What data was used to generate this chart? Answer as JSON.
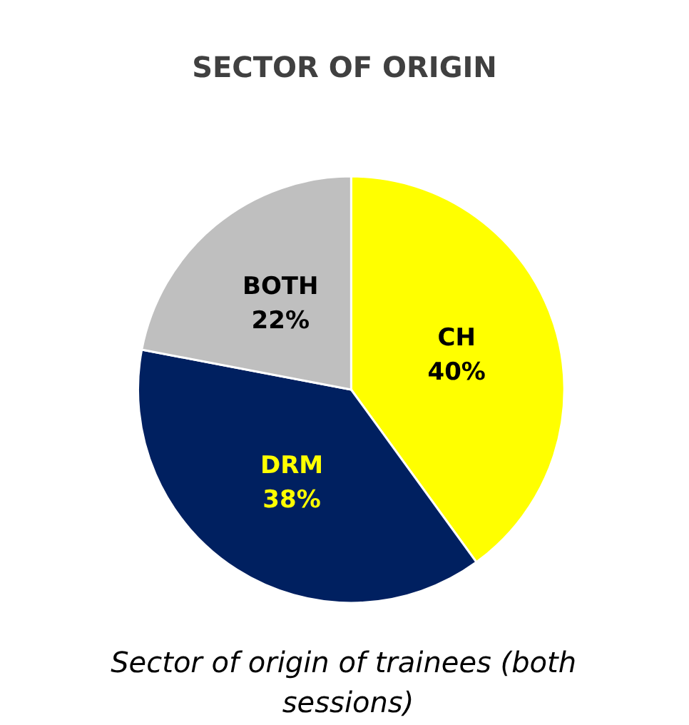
{
  "chart_data": {
    "type": "pie",
    "title": "SECTOR OF ORIGIN",
    "categories": [
      "CH",
      "DRM",
      "BOTH"
    ],
    "values": [
      40,
      38,
      22
    ],
    "colors": [
      "#ffff00",
      "#002060",
      "#bfbfbf"
    ],
    "value_labels": [
      "40%",
      "38%",
      "22%"
    ],
    "legend": false,
    "annotations": [
      "Sector of origin of trainees (both sessions)"
    ]
  }
}
